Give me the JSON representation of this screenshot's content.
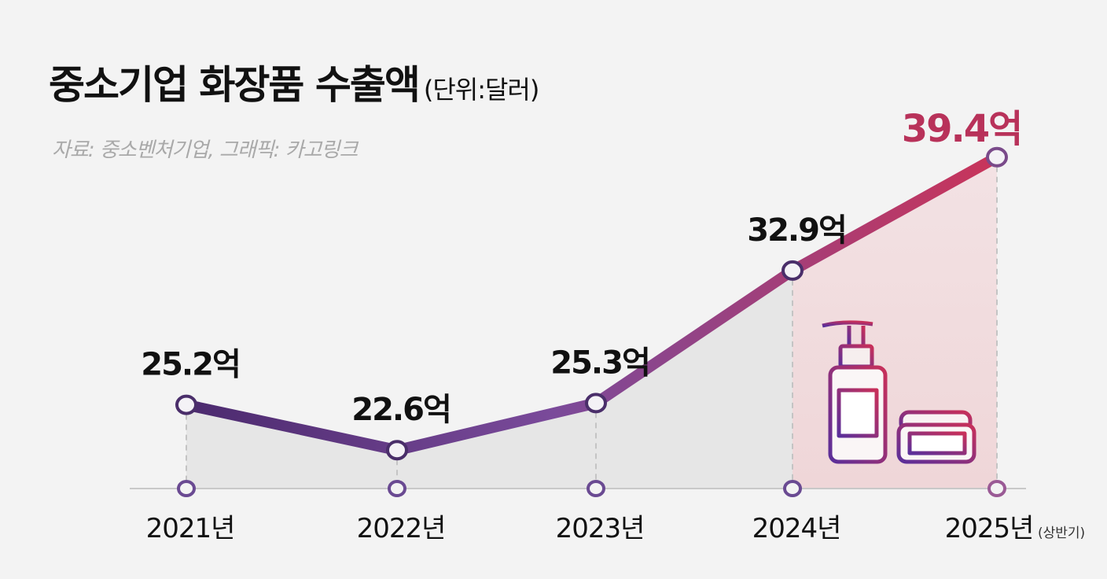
{
  "title": "중소기업 화장품 수출액",
  "unit": "(단위:달러)",
  "source": "자료: 중소벤처기업, 그래픽: 카고링크",
  "chart_data": {
    "type": "line",
    "title": "중소기업 화장품 수출액",
    "categories": [
      "2021년",
      "2022년",
      "2023년",
      "2024년",
      "2025년"
    ],
    "category_note": {
      "index": 4,
      "text": "(상반기)"
    },
    "values": [
      25.2,
      22.6,
      25.3,
      32.9,
      39.4
    ],
    "value_labels": [
      "25.2억",
      "22.6억",
      "25.3억",
      "32.9억",
      "39.4억"
    ],
    "xlabel": "",
    "ylabel": "억 달러",
    "ylim": [
      20.4,
      43.0
    ],
    "grid": false,
    "highlight_index": 4
  },
  "colors": {
    "line_start": "#4b2a6e",
    "line_end": "#c9345a",
    "highlight": "#b8325a",
    "area": "#e6e6e6",
    "highlight_area": "#f1d9dc"
  },
  "icon": "cosmetics-bottle-jar-icon"
}
